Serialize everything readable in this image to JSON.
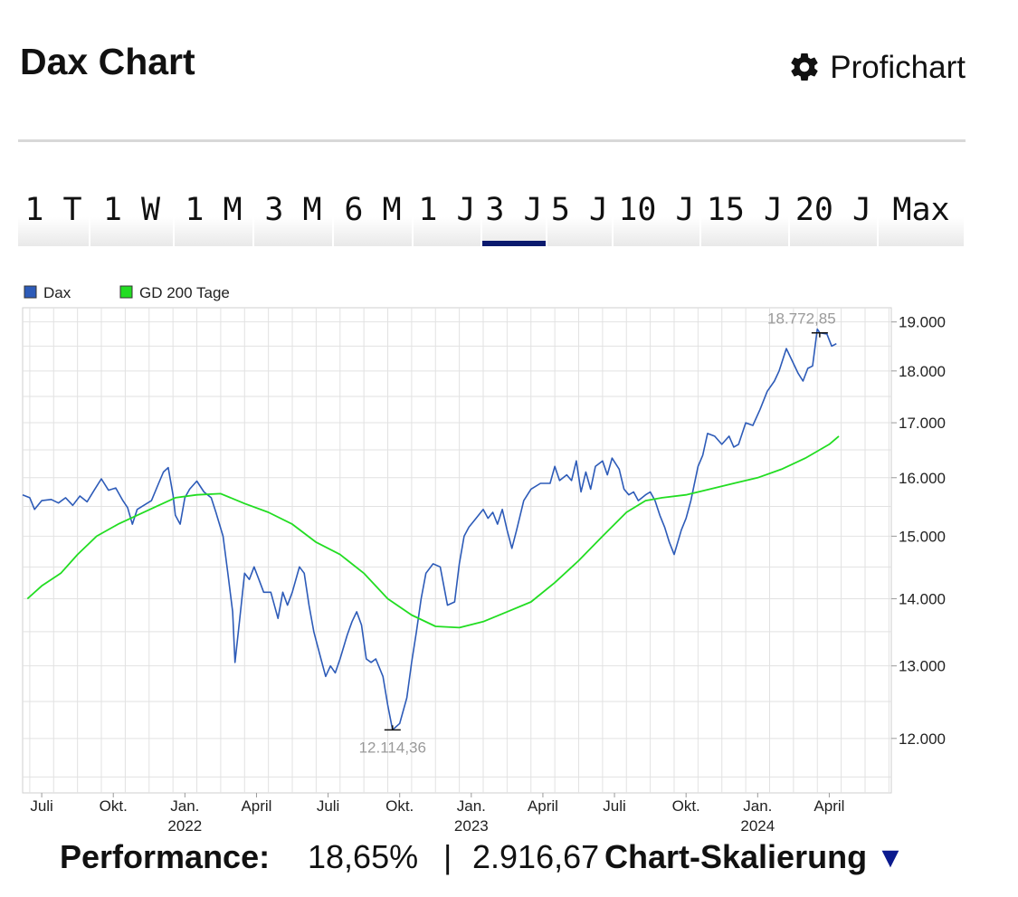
{
  "header": {
    "title": "Dax Chart",
    "profichart_label": "Profichart",
    "profichart_icon": "gear-icon"
  },
  "tabs": [
    {
      "label": "1 T",
      "active": false
    },
    {
      "label": "1 W",
      "active": false
    },
    {
      "label": "1 M",
      "active": false
    },
    {
      "label": "3 M",
      "active": false
    },
    {
      "label": "6 M",
      "active": false
    },
    {
      "label": "1 J",
      "active": false
    },
    {
      "label": "3 J",
      "active": true
    },
    {
      "label": "5 J",
      "active": false
    },
    {
      "label": "10 J",
      "active": false
    },
    {
      "label": "15 J",
      "active": false
    },
    {
      "label": "20 J",
      "active": false
    },
    {
      "label": "Max",
      "active": false
    }
  ],
  "colors": {
    "dax": "#2d5bb8",
    "gd200": "#22dd22",
    "active_tab": "#0b1a6e",
    "dropdown_arrow": "#0b1a8e"
  },
  "chart_data": {
    "type": "line",
    "x_axis": {
      "months": [
        {
          "label": "Juli",
          "t": 0
        },
        {
          "label": "Okt.",
          "t": 3
        },
        {
          "label": "Jan.",
          "t": 6,
          "year": "2022"
        },
        {
          "label": "April",
          "t": 9
        },
        {
          "label": "Juli",
          "t": 12
        },
        {
          "label": "Okt.",
          "t": 15
        },
        {
          "label": "Jan.",
          "t": 18,
          "year": "2023"
        },
        {
          "label": "April",
          "t": 21
        },
        {
          "label": "Juli",
          "t": 24
        },
        {
          "label": "Okt.",
          "t": 27
        },
        {
          "label": "Jan.",
          "t": 30,
          "year": "2024"
        },
        {
          "label": "April",
          "t": 33
        }
      ],
      "range": [
        -0.8,
        35.6
      ]
    },
    "y_axis": {
      "scale": "log",
      "ticks": [
        12000,
        13000,
        14000,
        15000,
        16000,
        17000,
        18000,
        19000
      ],
      "tick_labels": [
        "12.000",
        "13.000",
        "14.000",
        "15.000",
        "16.000",
        "17.000",
        "18.000",
        "19.000"
      ],
      "range": [
        11300,
        19300
      ]
    },
    "grid": true,
    "legend_position": "top-left",
    "series": [
      {
        "name": "Dax",
        "points": [
          [
            -0.8,
            15700
          ],
          [
            -0.5,
            15650
          ],
          [
            -0.3,
            15450
          ],
          [
            0.0,
            15600
          ],
          [
            0.4,
            15620
          ],
          [
            0.7,
            15560
          ],
          [
            1.0,
            15650
          ],
          [
            1.3,
            15520
          ],
          [
            1.6,
            15680
          ],
          [
            1.9,
            15580
          ],
          [
            2.2,
            15780
          ],
          [
            2.5,
            15980
          ],
          [
            2.8,
            15780
          ],
          [
            3.1,
            15820
          ],
          [
            3.4,
            15600
          ],
          [
            3.6,
            15480
          ],
          [
            3.8,
            15200
          ],
          [
            4.0,
            15450
          ],
          [
            4.4,
            15550
          ],
          [
            4.6,
            15600
          ],
          [
            4.9,
            15900
          ],
          [
            5.1,
            16100
          ],
          [
            5.3,
            16180
          ],
          [
            5.5,
            15700
          ],
          [
            5.6,
            15350
          ],
          [
            5.8,
            15200
          ],
          [
            6.0,
            15650
          ],
          [
            6.2,
            15800
          ],
          [
            6.5,
            15940
          ],
          [
            6.8,
            15750
          ],
          [
            7.1,
            15650
          ],
          [
            7.3,
            15400
          ],
          [
            7.6,
            15000
          ],
          [
            7.8,
            14400
          ],
          [
            8.0,
            13800
          ],
          [
            8.1,
            13050
          ],
          [
            8.3,
            13700
          ],
          [
            8.5,
            14400
          ],
          [
            8.7,
            14300
          ],
          [
            8.9,
            14500
          ],
          [
            9.1,
            14300
          ],
          [
            9.3,
            14100
          ],
          [
            9.6,
            14100
          ],
          [
            9.9,
            13700
          ],
          [
            10.1,
            14100
          ],
          [
            10.3,
            13900
          ],
          [
            10.5,
            14100
          ],
          [
            10.8,
            14500
          ],
          [
            11.0,
            14400
          ],
          [
            11.2,
            13900
          ],
          [
            11.4,
            13500
          ],
          [
            11.7,
            13100
          ],
          [
            11.9,
            12850
          ],
          [
            12.1,
            13000
          ],
          [
            12.3,
            12900
          ],
          [
            12.5,
            13100
          ],
          [
            12.8,
            13450
          ],
          [
            13.0,
            13650
          ],
          [
            13.2,
            13800
          ],
          [
            13.4,
            13600
          ],
          [
            13.6,
            13100
          ],
          [
            13.8,
            13050
          ],
          [
            14.0,
            13100
          ],
          [
            14.3,
            12850
          ],
          [
            14.5,
            12450
          ],
          [
            14.7,
            12114.36
          ],
          [
            15.0,
            12200
          ],
          [
            15.3,
            12550
          ],
          [
            15.5,
            13050
          ],
          [
            15.7,
            13500
          ],
          [
            15.9,
            14000
          ],
          [
            16.1,
            14400
          ],
          [
            16.4,
            14550
          ],
          [
            16.7,
            14500
          ],
          [
            16.9,
            14100
          ],
          [
            17.0,
            13900
          ],
          [
            17.3,
            13950
          ],
          [
            17.5,
            14550
          ],
          [
            17.7,
            15000
          ],
          [
            17.9,
            15150
          ],
          [
            18.2,
            15300
          ],
          [
            18.5,
            15450
          ],
          [
            18.7,
            15300
          ],
          [
            18.9,
            15400
          ],
          [
            19.1,
            15200
          ],
          [
            19.3,
            15450
          ],
          [
            19.5,
            15100
          ],
          [
            19.7,
            14800
          ],
          [
            19.9,
            15100
          ],
          [
            20.2,
            15600
          ],
          [
            20.5,
            15800
          ],
          [
            20.9,
            15900
          ],
          [
            21.3,
            15900
          ],
          [
            21.5,
            16200
          ],
          [
            21.7,
            15950
          ],
          [
            22.0,
            16050
          ],
          [
            22.2,
            15950
          ],
          [
            22.4,
            16300
          ],
          [
            22.6,
            15750
          ],
          [
            22.8,
            16100
          ],
          [
            23.0,
            15800
          ],
          [
            23.2,
            16200
          ],
          [
            23.5,
            16300
          ],
          [
            23.7,
            16050
          ],
          [
            23.9,
            16350
          ],
          [
            24.2,
            16150
          ],
          [
            24.4,
            15800
          ],
          [
            24.6,
            15700
          ],
          [
            24.8,
            15750
          ],
          [
            25.0,
            15600
          ],
          [
            25.3,
            15700
          ],
          [
            25.5,
            15750
          ],
          [
            25.7,
            15600
          ],
          [
            25.9,
            15350
          ],
          [
            26.1,
            15150
          ],
          [
            26.3,
            14900
          ],
          [
            26.5,
            14700
          ],
          [
            26.8,
            15100
          ],
          [
            27.0,
            15300
          ],
          [
            27.2,
            15600
          ],
          [
            27.5,
            16200
          ],
          [
            27.7,
            16400
          ],
          [
            27.9,
            16800
          ],
          [
            28.2,
            16750
          ],
          [
            28.5,
            16600
          ],
          [
            28.8,
            16750
          ],
          [
            29.0,
            16550
          ],
          [
            29.2,
            16600
          ],
          [
            29.5,
            17000
          ],
          [
            29.8,
            16950
          ],
          [
            30.1,
            17250
          ],
          [
            30.4,
            17600
          ],
          [
            30.7,
            17800
          ],
          [
            30.9,
            18000
          ],
          [
            31.2,
            18450
          ],
          [
            31.4,
            18250
          ],
          [
            31.7,
            17950
          ],
          [
            31.9,
            17800
          ],
          [
            32.1,
            18050
          ],
          [
            32.3,
            18100
          ],
          [
            32.5,
            18850
          ],
          [
            32.6,
            18772.85
          ],
          [
            32.9,
            18750
          ],
          [
            33.1,
            18500
          ],
          [
            33.3,
            18550
          ]
        ],
        "annotations": [
          {
            "label": "18.772,85",
            "at": [
              32.6,
              18772.85
            ],
            "kind": "max"
          },
          {
            "label": "12.114,36",
            "at": [
              14.7,
              12114.36
            ],
            "kind": "min"
          }
        ]
      },
      {
        "name": "GD 200 Tage",
        "points": [
          [
            -0.6,
            14000
          ],
          [
            0.0,
            14200
          ],
          [
            0.8,
            14400
          ],
          [
            1.5,
            14700
          ],
          [
            2.3,
            15000
          ],
          [
            3.2,
            15200
          ],
          [
            4.0,
            15350
          ],
          [
            4.8,
            15500
          ],
          [
            5.6,
            15650
          ],
          [
            6.5,
            15700
          ],
          [
            7.5,
            15720
          ],
          [
            8.5,
            15550
          ],
          [
            9.5,
            15400
          ],
          [
            10.5,
            15200
          ],
          [
            11.5,
            14900
          ],
          [
            12.5,
            14700
          ],
          [
            13.5,
            14400
          ],
          [
            14.5,
            14000
          ],
          [
            15.5,
            13750
          ],
          [
            16.5,
            13580
          ],
          [
            17.5,
            13560
          ],
          [
            18.5,
            13650
          ],
          [
            19.5,
            13800
          ],
          [
            20.5,
            13950
          ],
          [
            21.5,
            14250
          ],
          [
            22.5,
            14600
          ],
          [
            23.5,
            15000
          ],
          [
            24.5,
            15400
          ],
          [
            25.3,
            15600
          ],
          [
            26.0,
            15650
          ],
          [
            27.0,
            15700
          ],
          [
            28.0,
            15800
          ],
          [
            29.0,
            15900
          ],
          [
            30.0,
            16000
          ],
          [
            31.0,
            16150
          ],
          [
            32.0,
            16350
          ],
          [
            33.0,
            16600
          ],
          [
            33.4,
            16750
          ]
        ]
      }
    ]
  },
  "footer": {
    "performance_label": "Performance:",
    "performance_pct": "18,65%",
    "separator": "|",
    "performance_abs": "2.916,67",
    "scaling_label": "Chart-Skalierung",
    "scaling_icon": "triangle-down-icon"
  }
}
